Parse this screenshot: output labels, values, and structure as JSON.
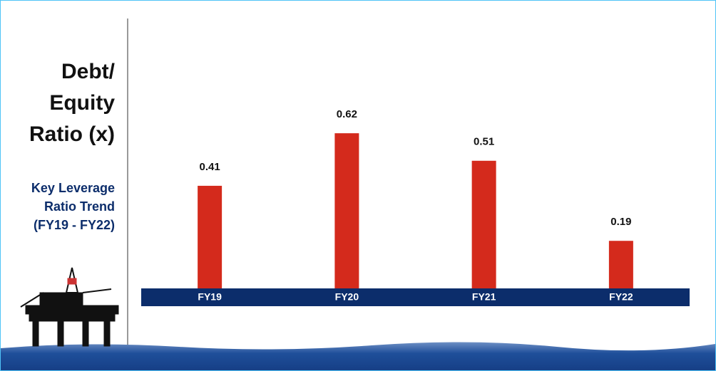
{
  "chart_data": {
    "type": "bar",
    "title": "Debt/ Equity Ratio (x)",
    "subtitle": "Key Leverage Ratio Trend (FY19 - FY22)",
    "categories": [
      "FY19",
      "FY20",
      "FY21",
      "FY22"
    ],
    "values": [
      0.41,
      0.62,
      0.51,
      0.19
    ],
    "color": "#d42a1c",
    "band_color": "#0c2d6b",
    "ylim": [
      0,
      0.7
    ]
  }
}
